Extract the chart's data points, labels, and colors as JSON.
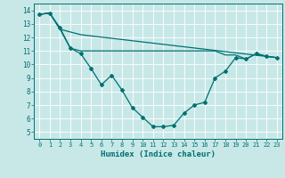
{
  "title": "",
  "xlabel": "Humidex (Indice chaleur)",
  "xlim": [
    -0.5,
    23.5
  ],
  "ylim": [
    4.5,
    14.5
  ],
  "yticks": [
    5,
    6,
    7,
    8,
    9,
    10,
    11,
    12,
    13,
    14
  ],
  "xticks": [
    0,
    1,
    2,
    3,
    4,
    5,
    6,
    7,
    8,
    9,
    10,
    11,
    12,
    13,
    14,
    15,
    16,
    17,
    18,
    19,
    20,
    21,
    22,
    23
  ],
  "bg_color": "#c8e8e8",
  "line_color": "#007070",
  "grid_color": "#ffffff",
  "line1_x": [
    0,
    1,
    2,
    3,
    4,
    5,
    6,
    7,
    8,
    9,
    10,
    11,
    12,
    13,
    14,
    15,
    16,
    17,
    18,
    19,
    20,
    21,
    22,
    23
  ],
  "line1_y": [
    13.7,
    13.8,
    12.7,
    11.2,
    10.8,
    9.7,
    8.5,
    9.2,
    8.1,
    6.8,
    6.1,
    5.4,
    5.4,
    5.5,
    6.4,
    7.0,
    7.2,
    9.0,
    9.5,
    10.5,
    10.4,
    10.8,
    10.6,
    10.5
  ],
  "line2_x": [
    0,
    1,
    2,
    3,
    4,
    5,
    6,
    7,
    8,
    9,
    10,
    11,
    12,
    13,
    14,
    15,
    16,
    17,
    18,
    19,
    20,
    21,
    22,
    23
  ],
  "line2_y": [
    13.7,
    13.8,
    12.6,
    11.2,
    11.0,
    11.0,
    11.0,
    11.0,
    11.0,
    11.0,
    11.0,
    11.0,
    11.0,
    11.0,
    11.0,
    11.0,
    11.0,
    11.0,
    10.7,
    10.7,
    10.4,
    10.8,
    10.6,
    10.5
  ],
  "line3_x": [
    0,
    1,
    2,
    3,
    4,
    23
  ],
  "line3_y": [
    13.7,
    13.8,
    12.6,
    12.4,
    12.2,
    10.5
  ],
  "xlabel_fontsize": 6.5,
  "tick_fontsize": 5.0,
  "lw": 0.9,
  "marker_size": 2.0
}
